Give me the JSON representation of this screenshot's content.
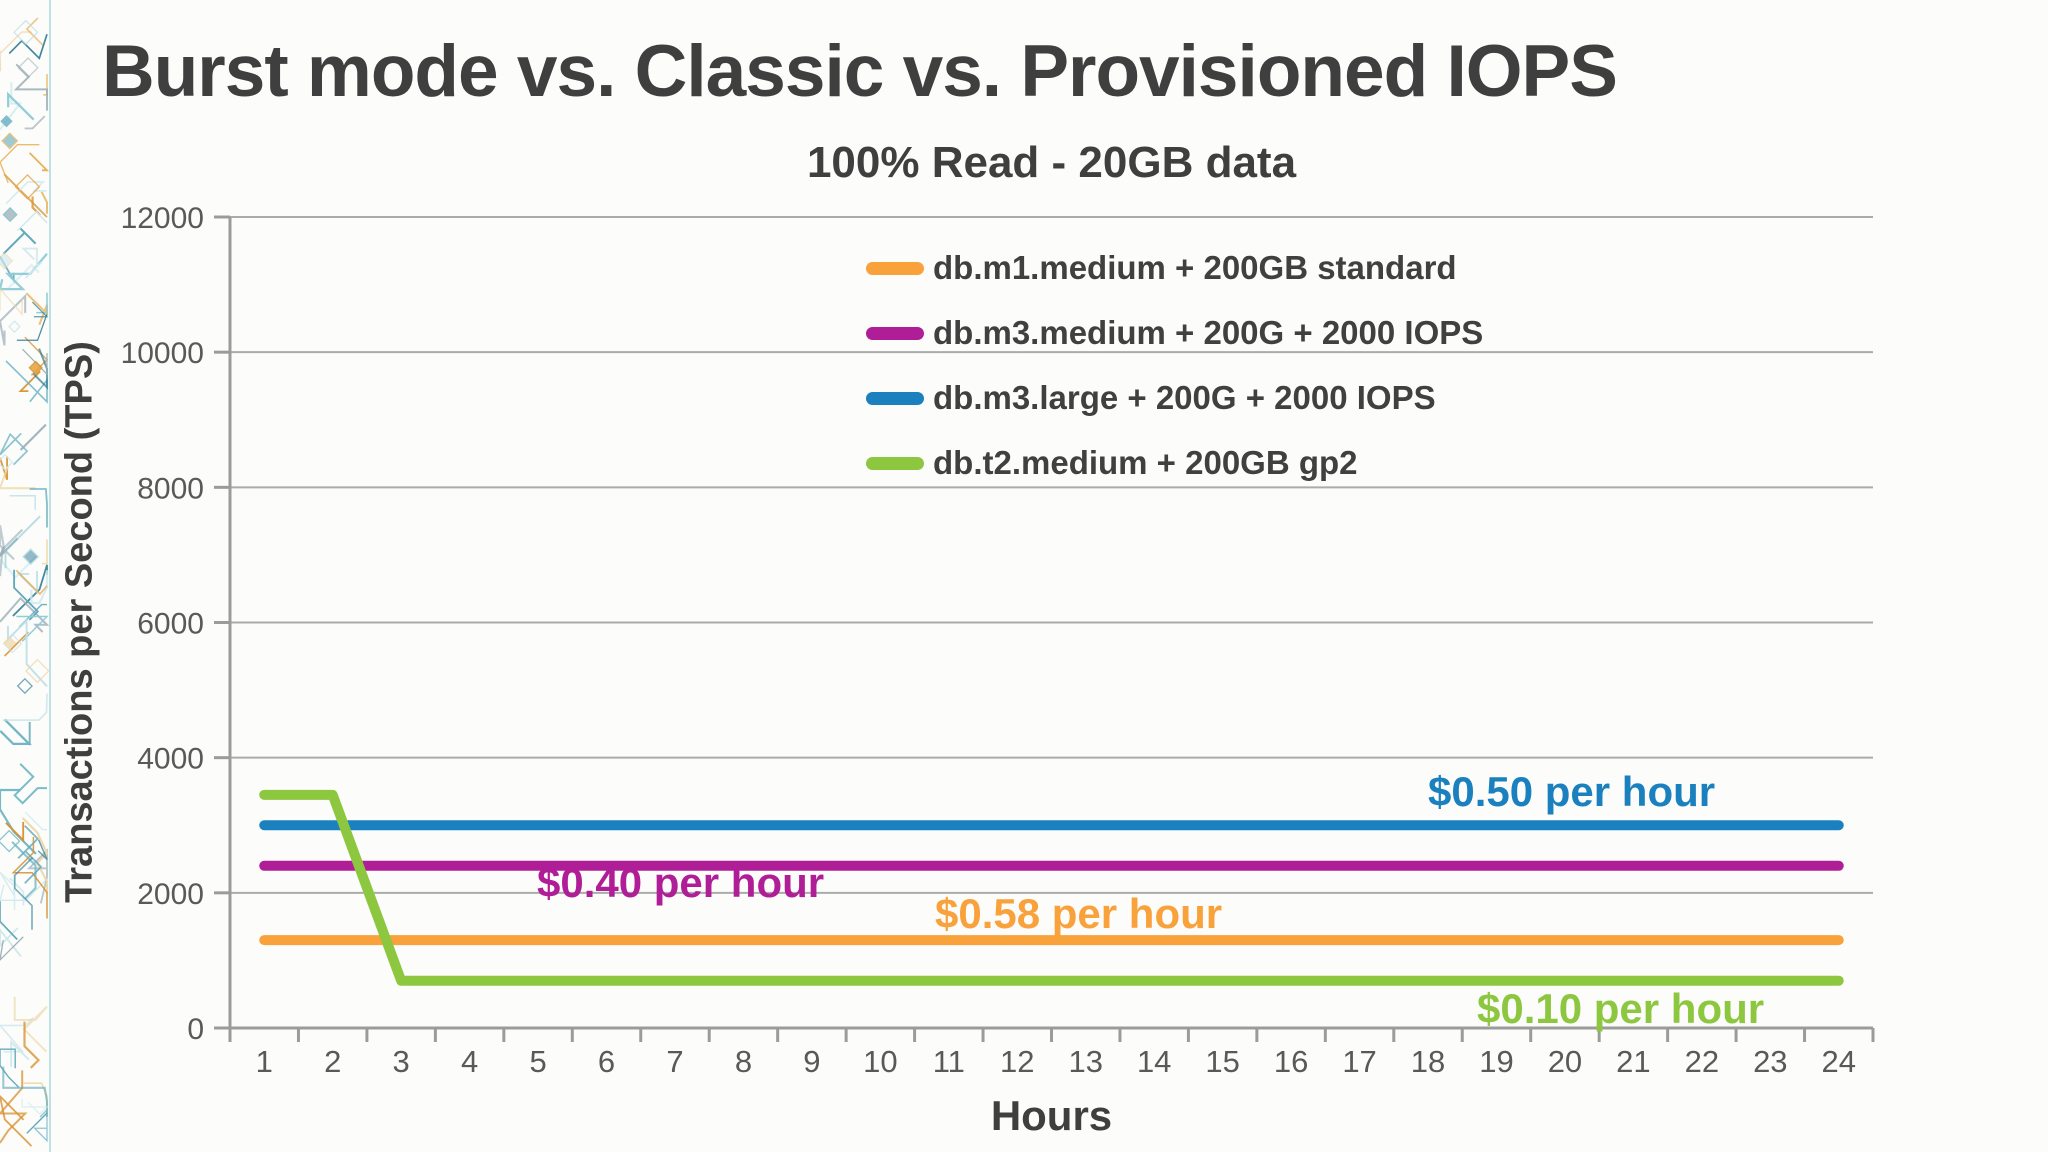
{
  "slide": {
    "title": "Burst mode vs. Classic vs. Provisioned IOPS",
    "subtitle": "100% Read - 20GB data"
  },
  "colors": {
    "title_text": "#3F3F3F",
    "tick_text": "#595959",
    "axis": "#9B9B9B",
    "grid": "#ABABAB",
    "background": "#FCFCFB"
  },
  "decor": {
    "palette": [
      "#5FA8BA",
      "#8CCBD6",
      "#317E93",
      "#BFE0E6",
      "#E5A33C",
      "#EDD7A6",
      "#9FB0B8",
      "#6FB5C4",
      "#CFE9ED",
      "#D7912F"
    ],
    "edge_line_color": "#BFE0E6"
  },
  "chart_data": {
    "type": "line",
    "title": "Burst mode vs. Classic vs. Provisioned IOPS",
    "subtitle": "100% Read - 20GB data",
    "xlabel": "Hours",
    "ylabel": "Transactions per Second (TPS)",
    "x": [
      1,
      2,
      3,
      4,
      5,
      6,
      7,
      8,
      9,
      10,
      11,
      12,
      13,
      14,
      15,
      16,
      17,
      18,
      19,
      20,
      21,
      22,
      23,
      24
    ],
    "ylim": [
      0,
      12000
    ],
    "y_ticks": [
      0,
      2000,
      4000,
      6000,
      8000,
      10000,
      12000
    ],
    "grid": "horizontal",
    "legend_position": "top-center-inside",
    "series": [
      {
        "id": "m1",
        "name": "db.m1.medium + 200GB standard",
        "color": "#F9A13B",
        "annotation": "$0.58 per hour",
        "values": [
          1300,
          1300,
          1300,
          1300,
          1300,
          1300,
          1300,
          1300,
          1300,
          1300,
          1300,
          1300,
          1300,
          1300,
          1300,
          1300,
          1300,
          1300,
          1300,
          1300,
          1300,
          1300,
          1300,
          1300
        ]
      },
      {
        "id": "m3m",
        "name": "db.m3.medium + 200G + 2000 IOPS",
        "color": "#B01E97",
        "annotation": "$0.40 per hour",
        "values": [
          2400,
          2400,
          2400,
          2400,
          2400,
          2400,
          2400,
          2400,
          2400,
          2400,
          2400,
          2400,
          2400,
          2400,
          2400,
          2400,
          2400,
          2400,
          2400,
          2400,
          2400,
          2400,
          2400,
          2400
        ]
      },
      {
        "id": "m3l",
        "name": "db.m3.large + 200G + 2000 IOPS",
        "color": "#1A80BE",
        "annotation": "$0.50 per hour",
        "values": [
          3000,
          3000,
          3000,
          3000,
          3000,
          3000,
          3000,
          3000,
          3000,
          3000,
          3000,
          3000,
          3000,
          3000,
          3000,
          3000,
          3000,
          3000,
          3000,
          3000,
          3000,
          3000,
          3000,
          3000
        ]
      },
      {
        "id": "t2",
        "name": "db.t2.medium + 200GB gp2",
        "color": "#8DC63F",
        "annotation": "$0.10 per hour",
        "values": [
          3450,
          3450,
          700,
          700,
          700,
          700,
          700,
          700,
          700,
          700,
          700,
          700,
          700,
          700,
          700,
          700,
          700,
          700,
          700,
          700,
          700,
          700,
          700,
          700
        ]
      }
    ]
  }
}
